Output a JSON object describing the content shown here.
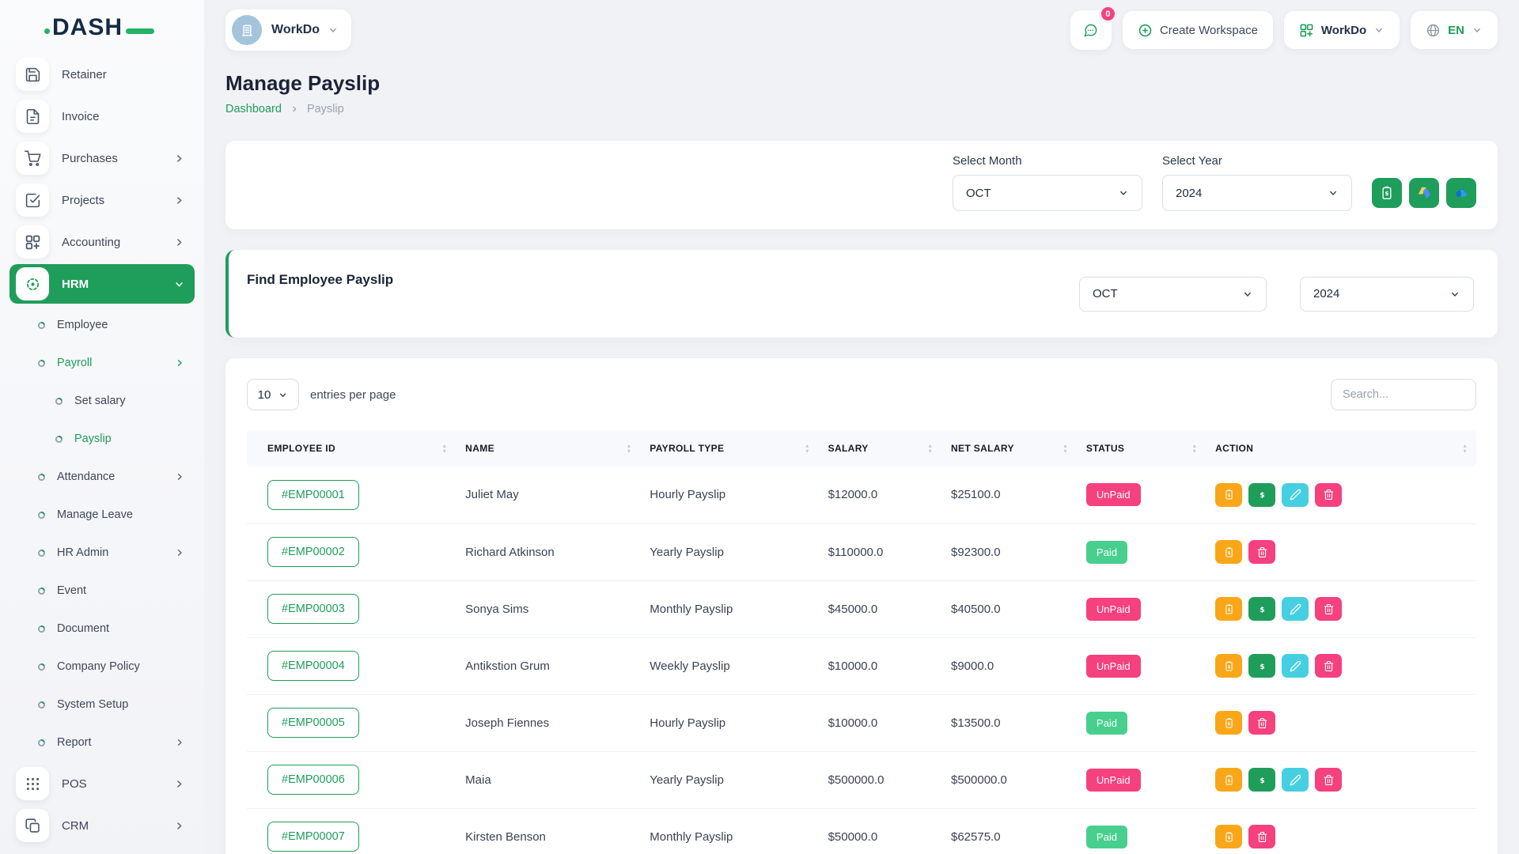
{
  "brand": {
    "name": "DASH"
  },
  "topbar": {
    "workspace_label": "WorkDo",
    "notification_count": "0",
    "create_workspace_label": "Create Workspace",
    "app_switcher_label": "WorkDo",
    "language": "EN"
  },
  "sidebar": {
    "items": [
      {
        "label": "Retainer",
        "icon": "save-icon",
        "type": "main"
      },
      {
        "label": "Invoice",
        "icon": "document-icon",
        "type": "main"
      },
      {
        "label": "Purchases",
        "icon": "cart-icon",
        "type": "main",
        "chevron": true
      },
      {
        "label": "Projects",
        "icon": "check-square-icon",
        "type": "main",
        "chevron": true
      },
      {
        "label": "Accounting",
        "icon": "grid-plus-icon",
        "type": "main",
        "chevron": true
      },
      {
        "label": "HRM",
        "icon": "hrm-icon",
        "type": "main",
        "active": true,
        "chevron": "down"
      },
      {
        "label": "Employee",
        "type": "sub"
      },
      {
        "label": "Payroll",
        "type": "sub",
        "chevron": true,
        "highlight": true
      },
      {
        "label": "Set salary",
        "type": "subsub"
      },
      {
        "label": "Payslip",
        "type": "subsub",
        "highlight": true
      },
      {
        "label": "Attendance",
        "type": "sub",
        "chevron": true
      },
      {
        "label": "Manage Leave",
        "type": "sub"
      },
      {
        "label": "HR Admin",
        "type": "sub",
        "chevron": true
      },
      {
        "label": "Event",
        "type": "sub"
      },
      {
        "label": "Document",
        "type": "sub"
      },
      {
        "label": "Company Policy",
        "type": "sub"
      },
      {
        "label": "System Setup",
        "type": "sub"
      },
      {
        "label": "Report",
        "type": "sub",
        "chevron": true
      },
      {
        "label": "POS",
        "icon": "dots-grid-icon",
        "type": "main",
        "chevron": true
      },
      {
        "label": "CRM",
        "icon": "crm-icon",
        "type": "main",
        "chevron": true
      }
    ]
  },
  "page": {
    "title": "Manage Payslip",
    "breadcrumb_home": "Dashboard",
    "breadcrumb_current": "Payslip"
  },
  "filter": {
    "month_label": "Select Month",
    "month_value": "OCT",
    "year_label": "Select Year",
    "year_value": "2024"
  },
  "find": {
    "title": "Find Employee Payslip",
    "month_value": "OCT",
    "year_value": "2024"
  },
  "table": {
    "entries_value": "10",
    "entries_label": "entries per page",
    "search_placeholder": "Search...",
    "columns": [
      "EMPLOYEE ID",
      "NAME",
      "PAYROLL TYPE",
      "SALARY",
      "NET SALARY",
      "STATUS",
      "ACTION"
    ],
    "rows": [
      {
        "id": "#EMP00001",
        "name": "Juliet May",
        "type": "Hourly Payslip",
        "salary": "$12000.0",
        "net": "$25100.0",
        "status": "UnPaid"
      },
      {
        "id": "#EMP00002",
        "name": "Richard Atkinson",
        "type": "Yearly Payslip",
        "salary": "$110000.0",
        "net": "$92300.0",
        "status": "Paid"
      },
      {
        "id": "#EMP00003",
        "name": "Sonya Sims",
        "type": "Monthly Payslip",
        "salary": "$45000.0",
        "net": "$40500.0",
        "status": "UnPaid"
      },
      {
        "id": "#EMP00004",
        "name": "Antikstion Grum",
        "type": "Weekly Payslip",
        "salary": "$10000.0",
        "net": "$9000.0",
        "status": "UnPaid"
      },
      {
        "id": "#EMP00005",
        "name": "Joseph Fiennes",
        "type": "Hourly Payslip",
        "salary": "$10000.0",
        "net": "$13500.0",
        "status": "Paid"
      },
      {
        "id": "#EMP00006",
        "name": "Maia",
        "type": "Yearly Payslip",
        "salary": "$500000.0",
        "net": "$500000.0",
        "status": "UnPaid"
      },
      {
        "id": "#EMP00007",
        "name": "Kirsten Benson",
        "type": "Monthly Payslip",
        "salary": "$50000.0",
        "net": "$62575.0",
        "status": "Paid"
      }
    ],
    "actions": {
      "unpaid": [
        "payslip",
        "money",
        "edit",
        "delete"
      ],
      "paid": [
        "payslip",
        "delete"
      ]
    }
  },
  "colors": {
    "primary": "#1f9d5b",
    "paid_badge": "#48cf8e",
    "unpaid_badge": "#f5417d",
    "orange": "#f9a719",
    "teal": "#46cfe0",
    "pink": "#f5417d"
  }
}
